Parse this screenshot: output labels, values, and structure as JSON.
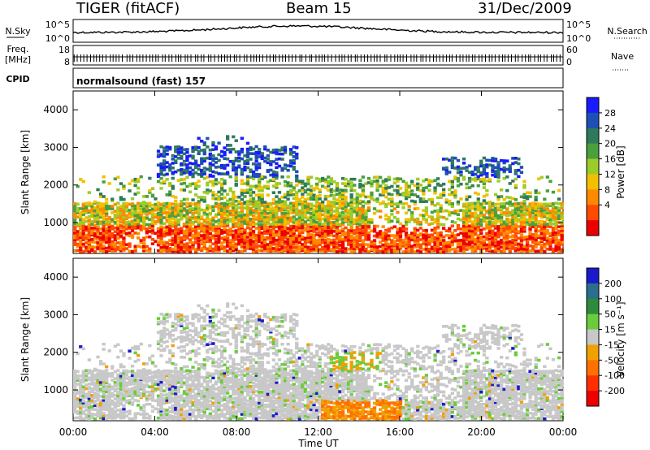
{
  "header": {
    "station": "TIGER (fitACF)",
    "beam": "Beam 15",
    "date": "31/Dec/2009"
  },
  "side_labels": {
    "nsky": "N.Sky",
    "nsearch": "N.Search",
    "freq": "Freq.",
    "freq_unit": "[MHz]",
    "nave": "Nave",
    "cpid": "CPID",
    "nsky_ticks": [
      "10^5",
      "10^0"
    ],
    "freq_ticks": [
      "18",
      "8"
    ],
    "nave_ticks": [
      "60",
      "0"
    ]
  },
  "cpid_text": "normalsound (fast) 157",
  "chart_data": [
    {
      "type": "heatmap",
      "name": "power",
      "ylabel": "Slant Range [km]",
      "ylim": [
        180,
        4500
      ],
      "yticks": [
        1000,
        2000,
        3000,
        4000
      ],
      "colorbar": {
        "label": "Power [dB]",
        "ticks": [
          "4",
          "8",
          "12",
          "16",
          "20",
          "24",
          "28"
        ],
        "colors": [
          "#1a1aff",
          "#1e4fb4",
          "#2f7a5a",
          "#4aa03c",
          "#9ccc2a",
          "#f2c000",
          "#ff8a00",
          "#ff4a00",
          "#ee0000"
        ]
      }
    },
    {
      "type": "heatmap",
      "name": "velocity",
      "ylabel": "Slant Range [km]",
      "ylim": [
        180,
        4500
      ],
      "yticks": [
        1000,
        2000,
        3000,
        4000
      ],
      "colorbar": {
        "label": "Velocity [m s⁻¹]",
        "ticks": [
          "200",
          "100",
          "50",
          "15",
          "-15",
          "-50",
          "-100",
          "-200"
        ],
        "colors": [
          "#1a1acc",
          "#2b6f8c",
          "#2e8b3c",
          "#6acc3a",
          "#c8c8c8",
          "#f0a000",
          "#ff7000",
          "#ff3000",
          "#ee0000"
        ]
      }
    }
  ],
  "xaxis": {
    "label": "Time UT",
    "ticks": [
      "00:00",
      "04:00",
      "08:00",
      "12:00",
      "16:00",
      "20:00",
      "00:00"
    ]
  }
}
